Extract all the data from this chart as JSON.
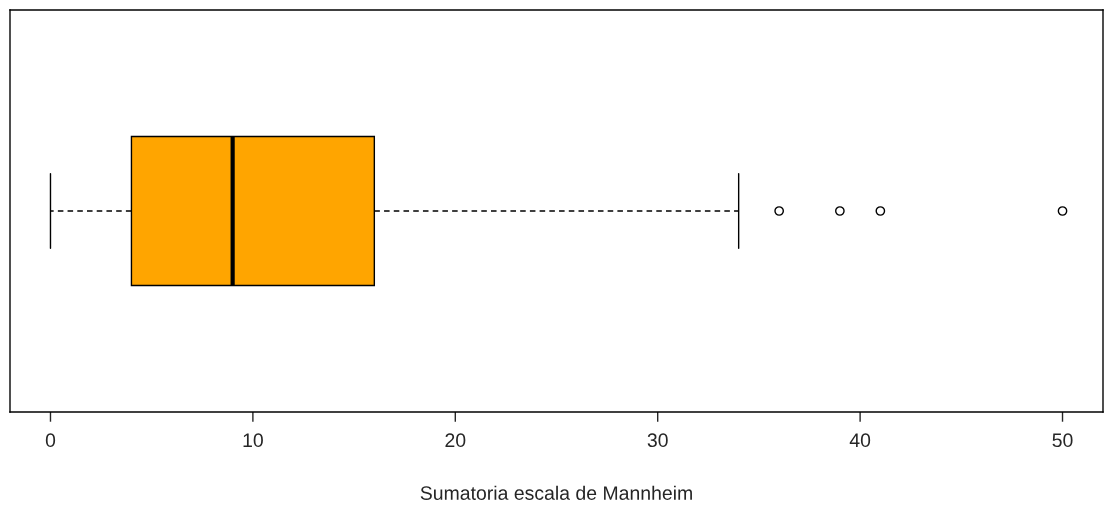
{
  "chart_data": {
    "type": "box",
    "orientation": "horizontal",
    "xlabel": "Sumatoria escala de Mannheim",
    "categories": [
      null
    ],
    "boxes": [
      {
        "low": 0,
        "q1": 4,
        "median": 9,
        "q3": 16,
        "high": 34,
        "outliers": [
          36,
          39,
          41,
          50
        ]
      }
    ],
    "colors": [
      "#ffa500"
    ],
    "xlim": [
      -2,
      52
    ],
    "xticks": [
      0,
      10,
      20,
      30,
      40,
      50
    ],
    "tick_labels": "x",
    "grid": false,
    "legend": false
  }
}
